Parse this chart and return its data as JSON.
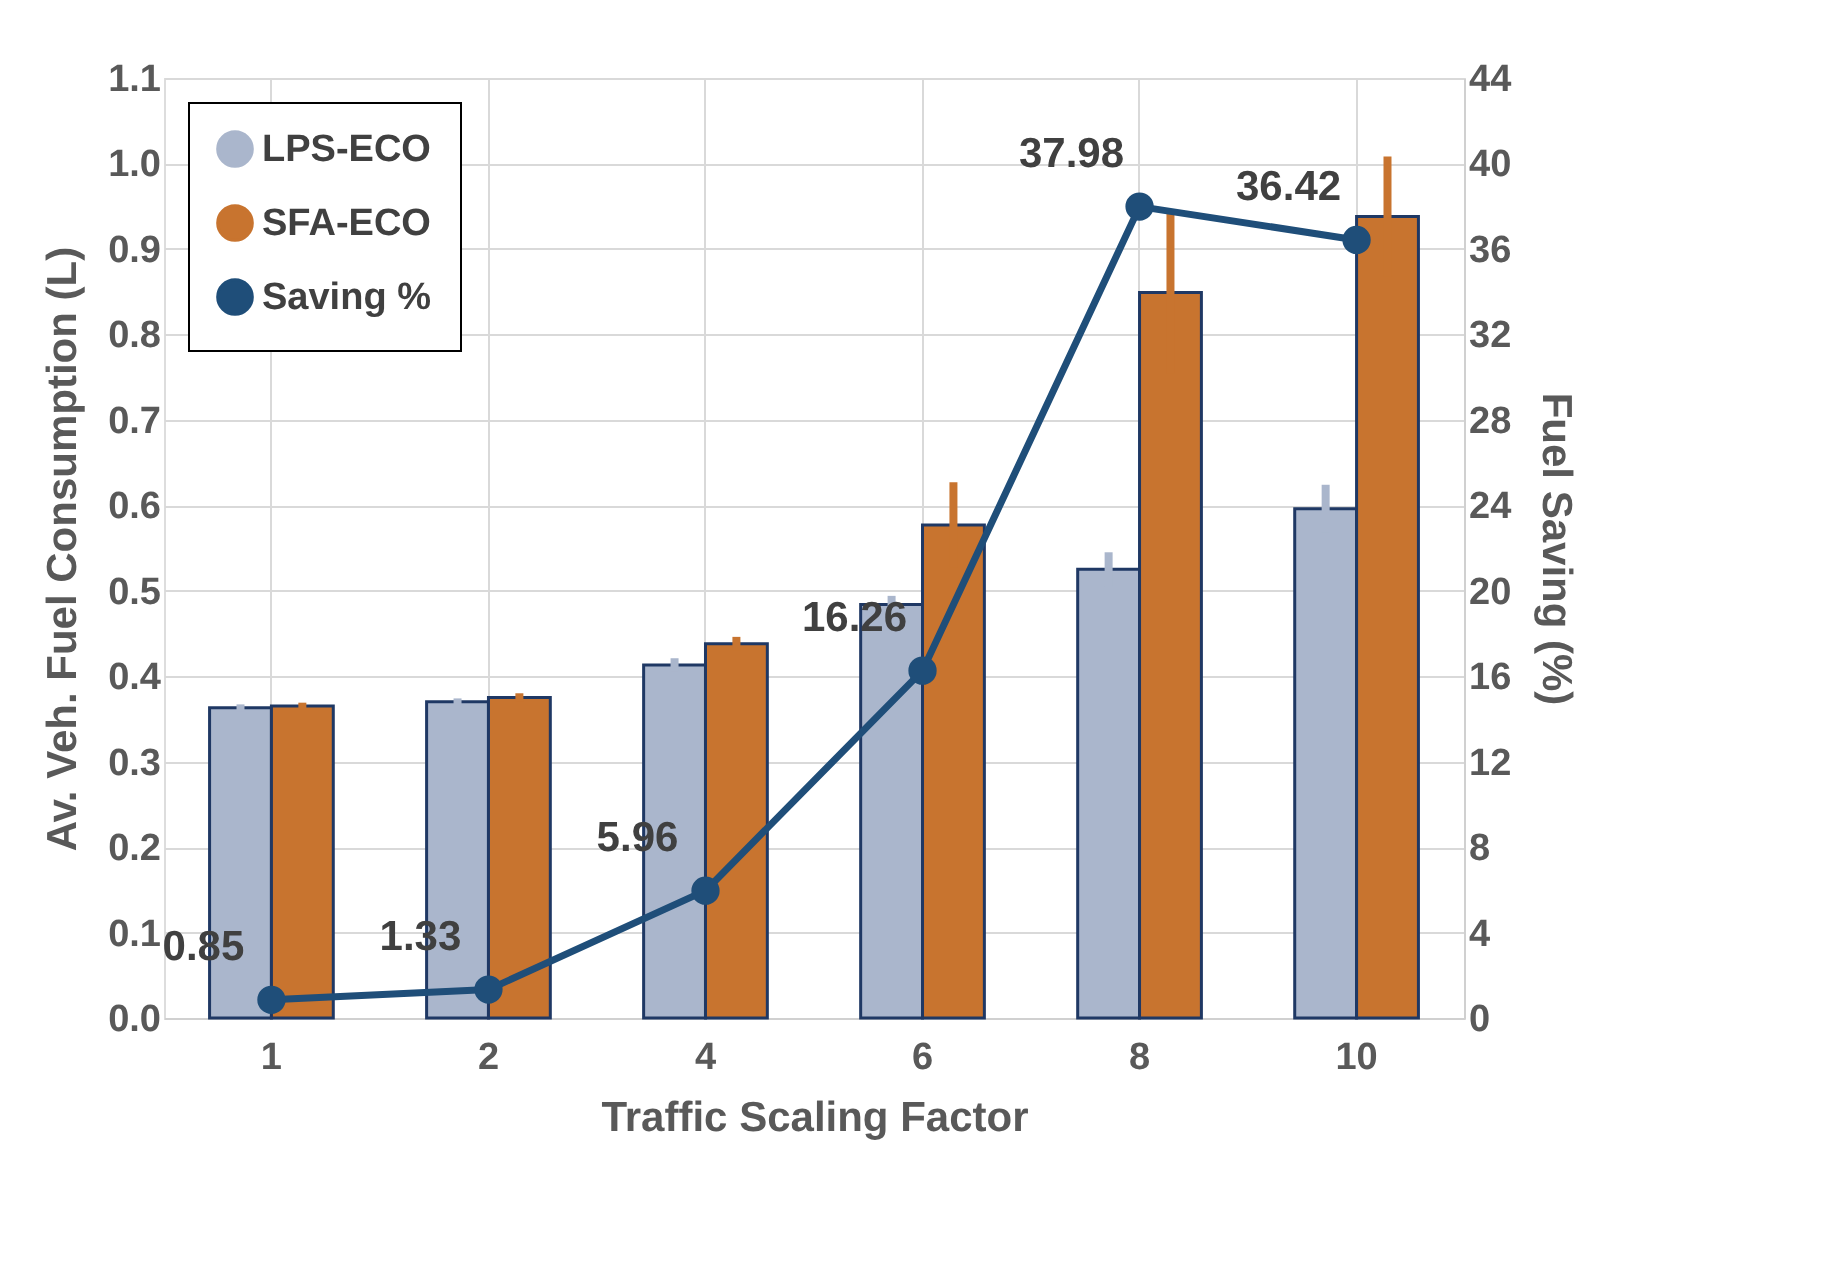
{
  "chart_data": {
    "type": "bar",
    "xlabel": "Traffic Scaling Factor",
    "ylabel": "Av. Veh. Fuel Consumption (L)",
    "y2label": "Fuel Saving (%)",
    "categories": [
      "1",
      "2",
      "4",
      "6",
      "8",
      "10"
    ],
    "series": [
      {
        "name": "LPS-ECO",
        "color": "#aab6cc",
        "values": [
          0.363,
          0.37,
          0.413,
          0.484,
          0.525,
          0.596
        ],
        "errors": [
          0.004,
          0.004,
          0.008,
          0.01,
          0.02,
          0.028
        ]
      },
      {
        "name": "SFA-ECO",
        "color": "#c8742f",
        "values": [
          0.365,
          0.375,
          0.438,
          0.577,
          0.849,
          0.938
        ],
        "errors": [
          0.004,
          0.005,
          0.008,
          0.05,
          0.095,
          0.07
        ]
      },
      {
        "name": "Saving %",
        "type": "line",
        "axis": "y2",
        "color": "#1f4e79",
        "marker": "circle",
        "values": [
          0.85,
          1.33,
          5.96,
          16.26,
          37.98,
          36.42
        ],
        "value_labels": [
          "0.85",
          "1.33",
          "5.96",
          "16.26",
          "37.98",
          "36.42"
        ]
      }
    ],
    "ylim": [
      0,
      1.1
    ],
    "yticks": [
      {
        "value": 0,
        "label": "0.0"
      },
      0.1,
      0.2,
      0.3,
      0.4,
      0.5,
      0.6,
      0.7,
      0.8,
      0.9,
      {
        "value": 1,
        "label": "1.0"
      },
      1.1
    ],
    "y2lim": [
      0,
      44
    ],
    "y2ticks": [
      0,
      4,
      8,
      12,
      16,
      20,
      24,
      28,
      32,
      36,
      40,
      44
    ],
    "grid": true,
    "legend": "top left"
  }
}
